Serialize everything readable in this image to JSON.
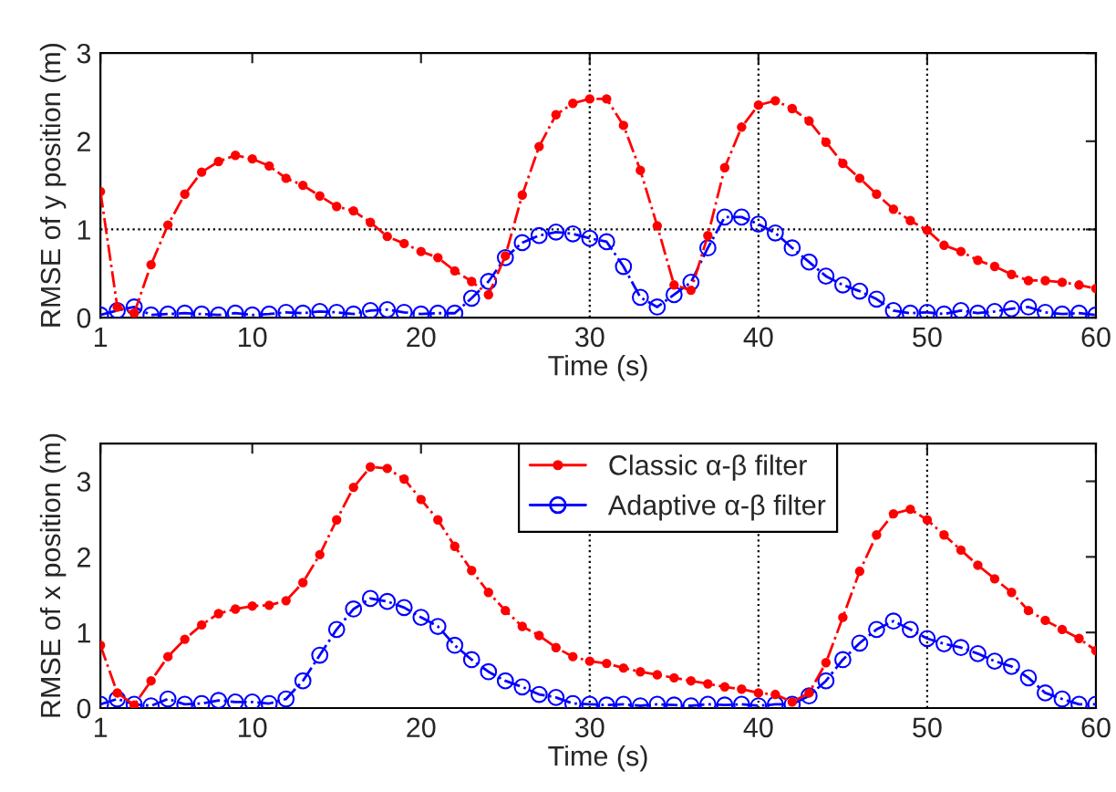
{
  "chart_data": [
    {
      "type": "line",
      "xlabel": "Time (s)",
      "ylabel": "RMSE of y position (m)",
      "xlim": [
        1,
        60
      ],
      "ylim": [
        0,
        3
      ],
      "xticks": [
        1,
        10,
        20,
        30,
        40,
        50,
        60
      ],
      "yticks": [
        0,
        1,
        2,
        3
      ],
      "grid": false,
      "legend": false,
      "marker": "circle",
      "line_style": "dashed",
      "x": [
        1,
        2,
        3,
        4,
        5,
        6,
        7,
        8,
        9,
        10,
        11,
        12,
        13,
        14,
        15,
        16,
        17,
        18,
        19,
        20,
        21,
        22,
        23,
        24,
        25,
        26,
        27,
        28,
        29,
        30,
        31,
        32,
        33,
        34,
        35,
        36,
        37,
        38,
        39,
        40,
        41,
        42,
        43,
        44,
        45,
        46,
        47,
        48,
        49,
        50,
        51,
        52,
        53,
        54,
        55,
        56,
        57,
        58,
        59,
        60
      ],
      "series": [
        {
          "color": "#ff0000",
          "values": [
            1.43,
            0.12,
            0.05,
            0.6,
            1.05,
            1.4,
            1.65,
            1.77,
            1.84,
            1.8,
            1.72,
            1.58,
            1.5,
            1.38,
            1.26,
            1.21,
            1.08,
            0.92,
            0.84,
            0.75,
            0.68,
            0.53,
            0.41,
            0.26,
            0.7,
            1.39,
            1.94,
            2.3,
            2.43,
            2.48,
            2.48,
            2.18,
            1.67,
            1.04,
            0.37,
            0.31,
            0.93,
            1.7,
            2.16,
            2.41,
            2.46,
            2.37,
            2.23,
            1.99,
            1.75,
            1.58,
            1.4,
            1.23,
            1.1,
            0.99,
            0.82,
            0.75,
            0.65,
            0.58,
            0.49,
            0.42,
            0.42,
            0.4,
            0.37,
            0.33
          ]
        },
        {
          "color": "#0000ff",
          "values": [
            0.03,
            0.08,
            0.12,
            0.03,
            0.04,
            0.05,
            0.04,
            0.03,
            0.05,
            0.03,
            0.04,
            0.06,
            0.05,
            0.07,
            0.06,
            0.04,
            0.08,
            0.09,
            0.06,
            0.04,
            0.05,
            0.05,
            0.22,
            0.41,
            0.68,
            0.85,
            0.93,
            0.97,
            0.95,
            0.9,
            0.86,
            0.58,
            0.23,
            0.12,
            0.26,
            0.4,
            0.79,
            1.14,
            1.14,
            1.06,
            0.96,
            0.79,
            0.63,
            0.47,
            0.37,
            0.3,
            0.21,
            0.08,
            0.05,
            0.06,
            0.04,
            0.08,
            0.05,
            0.07,
            0.1,
            0.12,
            0.06,
            0.04,
            0.05,
            0.03
          ]
        }
      ],
      "ref_lines": [
        {
          "axis": "x",
          "value": 30,
          "color": "#000000",
          "line_style": "dotted"
        },
        {
          "axis": "x",
          "value": 40,
          "color": "#000000",
          "line_style": "dotted"
        },
        {
          "axis": "x",
          "value": 50,
          "color": "#000000",
          "line_style": "dotted"
        },
        {
          "axis": "y",
          "value": 1,
          "color": "#000000",
          "line_style": "dotted"
        }
      ]
    },
    {
      "type": "line",
      "xlabel": "Time (s)",
      "ylabel": "RMSE of x position (m)",
      "xlim": [
        1,
        60
      ],
      "ylim": [
        0,
        3.5
      ],
      "xticks": [
        1,
        10,
        20,
        30,
        40,
        50,
        60
      ],
      "yticks": [
        0,
        1,
        2,
        3
      ],
      "grid": false,
      "legend": "top right",
      "marker": "circle",
      "line_style": "dashed",
      "x": [
        1,
        2,
        3,
        4,
        5,
        6,
        7,
        8,
        9,
        10,
        11,
        12,
        13,
        14,
        15,
        16,
        17,
        18,
        19,
        20,
        21,
        22,
        23,
        24,
        25,
        26,
        27,
        28,
        29,
        30,
        31,
        32,
        33,
        34,
        35,
        36,
        37,
        38,
        39,
        40,
        41,
        42,
        43,
        44,
        45,
        46,
        47,
        48,
        49,
        50,
        51,
        52,
        53,
        54,
        55,
        56,
        57,
        58,
        59,
        60
      ],
      "series": [
        {
          "name": "Classic α-β filter",
          "color": "#ff0000",
          "values": [
            0.83,
            0.2,
            0.04,
            0.36,
            0.68,
            0.91,
            1.1,
            1.25,
            1.31,
            1.35,
            1.36,
            1.42,
            1.66,
            2.03,
            2.49,
            2.92,
            3.19,
            3.17,
            3.03,
            2.76,
            2.49,
            2.14,
            1.82,
            1.53,
            1.29,
            1.08,
            0.96,
            0.8,
            0.68,
            0.62,
            0.59,
            0.53,
            0.48,
            0.44,
            0.4,
            0.36,
            0.32,
            0.28,
            0.25,
            0.2,
            0.18,
            0.08,
            0.2,
            0.6,
            1.2,
            1.81,
            2.29,
            2.57,
            2.63,
            2.49,
            2.29,
            2.09,
            1.89,
            1.71,
            1.53,
            1.29,
            1.16,
            1.04,
            0.92,
            0.76
          ]
        },
        {
          "name": "Adaptive α-β filter",
          "color": "#0000ff",
          "values": [
            0.05,
            0.12,
            0.05,
            0.03,
            0.12,
            0.05,
            0.06,
            0.1,
            0.08,
            0.08,
            0.06,
            0.12,
            0.36,
            0.7,
            1.04,
            1.31,
            1.45,
            1.41,
            1.33,
            1.2,
            1.08,
            0.83,
            0.64,
            0.48,
            0.36,
            0.28,
            0.18,
            0.14,
            0.06,
            0.05,
            0.04,
            0.05,
            0.03,
            0.05,
            0.04,
            0.03,
            0.05,
            0.04,
            0.05,
            0.03,
            0.05,
            0.05,
            0.16,
            0.36,
            0.64,
            0.86,
            1.04,
            1.15,
            1.04,
            0.92,
            0.85,
            0.8,
            0.72,
            0.62,
            0.55,
            0.4,
            0.2,
            0.12,
            0.05,
            0.05
          ]
        }
      ],
      "ref_lines": [
        {
          "axis": "x",
          "value": 30,
          "color": "#000000",
          "line_style": "dotted"
        },
        {
          "axis": "x",
          "value": 40,
          "color": "#000000",
          "line_style": "dotted"
        },
        {
          "axis": "x",
          "value": 50,
          "color": "#000000",
          "line_style": "dotted"
        }
      ]
    }
  ]
}
